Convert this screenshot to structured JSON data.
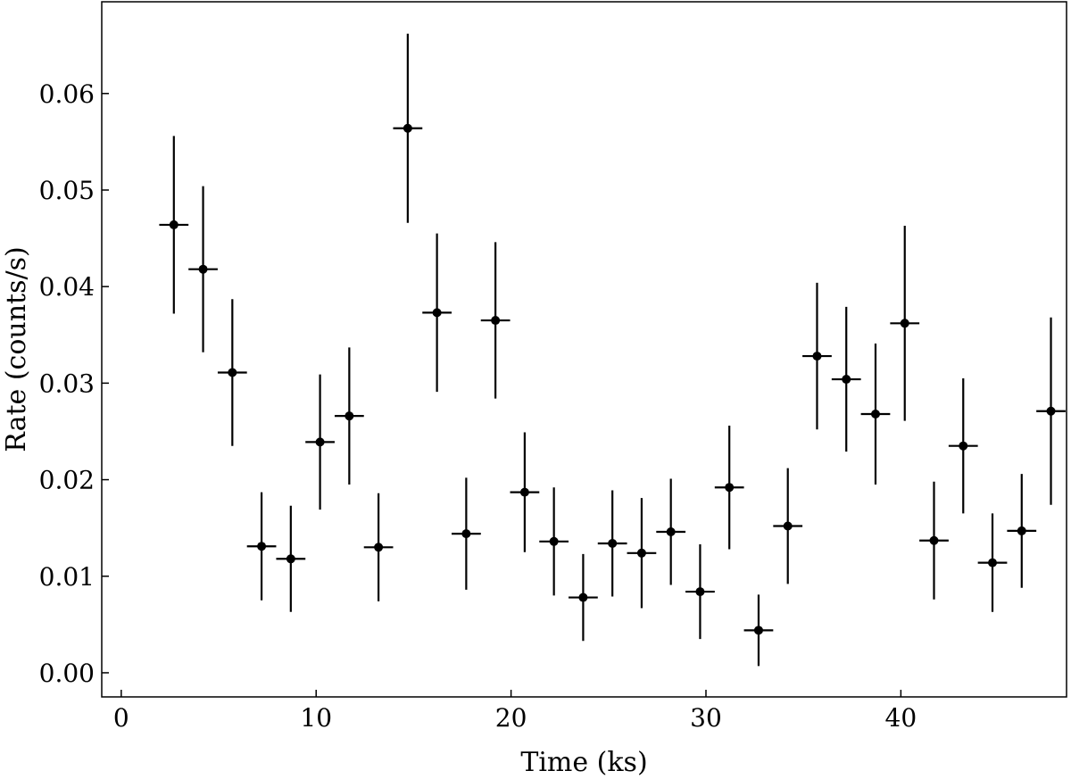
{
  "chart_data": {
    "type": "scatter",
    "title": "",
    "xlabel": "Time (ks)",
    "ylabel": "Rate (counts/s)",
    "xlim": [
      -1,
      48.5
    ],
    "ylim": [
      -0.0025,
      0.0695
    ],
    "xticks": [
      0,
      10,
      20,
      30,
      40
    ],
    "xtick_labels": [
      "0",
      "10",
      "20",
      "30",
      "40"
    ],
    "yticks": [
      0.0,
      0.01,
      0.02,
      0.03,
      0.04,
      0.05,
      0.06
    ],
    "ytick_labels": [
      "0.00",
      "0.01",
      "0.02",
      "0.03",
      "0.04",
      "0.05",
      "0.06"
    ],
    "grid": false,
    "marker_color": "#000000",
    "series": [
      {
        "x_halfwidth": 0.75,
        "points": [
          {
            "x": 2.7,
            "y": 0.0464,
            "yerr": 0.0092
          },
          {
            "x": 4.2,
            "y": 0.0418,
            "yerr": 0.0086
          },
          {
            "x": 5.7,
            "y": 0.0311,
            "yerr": 0.0076
          },
          {
            "x": 7.2,
            "y": 0.0131,
            "yerr": 0.0056
          },
          {
            "x": 8.7,
            "y": 0.0118,
            "yerr": 0.0055
          },
          {
            "x": 10.2,
            "y": 0.0239,
            "yerr": 0.007
          },
          {
            "x": 11.7,
            "y": 0.0266,
            "yerr": 0.0071
          },
          {
            "x": 13.2,
            "y": 0.013,
            "yerr": 0.0056
          },
          {
            "x": 14.7,
            "y": 0.0564,
            "yerr": 0.0098
          },
          {
            "x": 16.2,
            "y": 0.0373,
            "yerr": 0.0082
          },
          {
            "x": 17.7,
            "y": 0.0144,
            "yerr": 0.0058
          },
          {
            "x": 19.2,
            "y": 0.0365,
            "yerr": 0.0081
          },
          {
            "x": 20.7,
            "y": 0.0187,
            "yerr": 0.0062
          },
          {
            "x": 22.2,
            "y": 0.0136,
            "yerr": 0.0056
          },
          {
            "x": 23.7,
            "y": 0.0078,
            "yerr": 0.0045
          },
          {
            "x": 25.2,
            "y": 0.0134,
            "yerr": 0.0055
          },
          {
            "x": 26.7,
            "y": 0.0124,
            "yerr": 0.0057
          },
          {
            "x": 28.2,
            "y": 0.0146,
            "yerr": 0.0055
          },
          {
            "x": 29.7,
            "y": 0.0084,
            "yerr": 0.0049
          },
          {
            "x": 31.2,
            "y": 0.0192,
            "yerr": 0.0064
          },
          {
            "x": 32.7,
            "y": 0.0044,
            "yerr": 0.0037
          },
          {
            "x": 34.2,
            "y": 0.0152,
            "yerr": 0.006
          },
          {
            "x": 35.7,
            "y": 0.0328,
            "yerr": 0.0076
          },
          {
            "x": 37.2,
            "y": 0.0304,
            "yerr": 0.0075
          },
          {
            "x": 38.7,
            "y": 0.0268,
            "yerr": 0.0073
          },
          {
            "x": 40.2,
            "y": 0.0362,
            "yerr": 0.0101
          },
          {
            "x": 41.7,
            "y": 0.0137,
            "yerr": 0.0061
          },
          {
            "x": 43.2,
            "y": 0.0235,
            "yerr": 0.007
          },
          {
            "x": 44.7,
            "y": 0.0114,
            "yerr": 0.0051
          },
          {
            "x": 46.2,
            "y": 0.0147,
            "yerr": 0.0059
          },
          {
            "x": 47.7,
            "y": 0.0271,
            "yerr": 0.0097
          }
        ]
      }
    ]
  }
}
